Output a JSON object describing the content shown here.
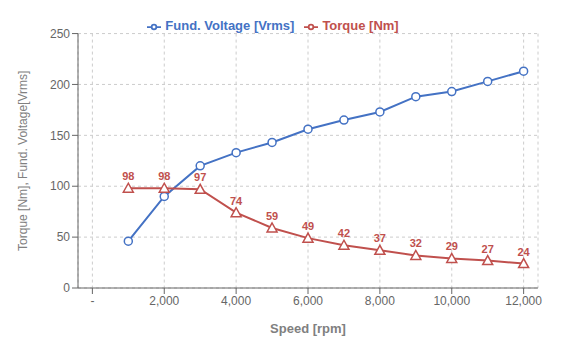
{
  "chart_data": {
    "type": "line",
    "x": [
      1000,
      2000,
      3000,
      4000,
      5000,
      6000,
      7000,
      8000,
      9000,
      10000,
      11000,
      12000
    ],
    "series": [
      {
        "name": "Fund. Voltage [Vrms]",
        "color": "#4472C4",
        "marker": "circle",
        "values": [
          46,
          90,
          120,
          133,
          143,
          156,
          165,
          173,
          188,
          193,
          203,
          213
        ]
      },
      {
        "name": "Torque [Nm]",
        "color": "#C0504D",
        "marker": "triangle",
        "data_labels": true,
        "values": [
          98,
          98,
          97,
          74,
          59,
          49,
          42,
          37,
          32,
          29,
          27,
          24
        ]
      }
    ],
    "xlabel": "Speed [rpm]",
    "ylabel": "Torque [Nm], Fund. Voltage[Vrms]",
    "xlim": [
      -400,
      12400
    ],
    "xticks": [
      {
        "value": 0,
        "label": "-"
      },
      {
        "value": 2000,
        "label": "2,000"
      },
      {
        "value": 4000,
        "label": "4,000"
      },
      {
        "value": 6000,
        "label": "6,000"
      },
      {
        "value": 8000,
        "label": "8,000"
      },
      {
        "value": 10000,
        "label": "10,000"
      },
      {
        "value": 12000,
        "label": "12,000"
      }
    ],
    "ylim": [
      0,
      250
    ],
    "yticks": [
      0,
      50,
      100,
      150,
      200,
      250
    ],
    "grid": true,
    "legend": "top"
  }
}
